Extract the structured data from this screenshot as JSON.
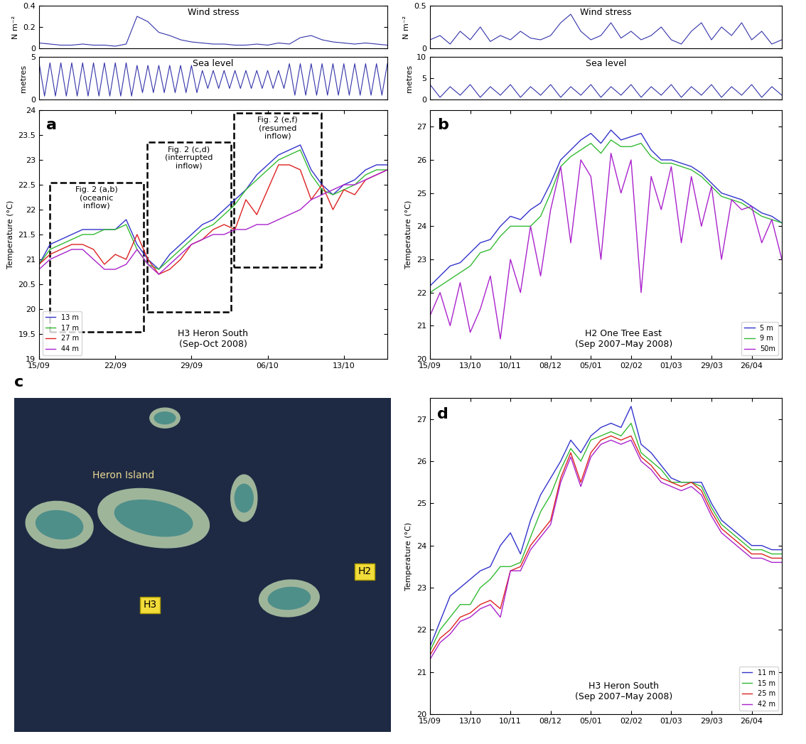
{
  "chart_data": [
    {
      "type": "line",
      "panel": null,
      "title": "Wind stress",
      "y_label": "N m⁻²",
      "x": [
        0,
        1,
        2,
        3,
        4,
        5,
        6,
        7,
        8,
        9,
        10,
        11,
        12,
        13,
        14,
        15,
        16,
        17,
        18,
        19,
        20,
        21,
        22,
        23,
        24,
        25,
        26,
        27,
        28,
        29,
        30,
        31,
        32
      ],
      "series": [
        {
          "name": "Wind stress",
          "color": "#3333aa",
          "values": [
            0.05,
            0.04,
            0.03,
            0.03,
            0.04,
            0.03,
            0.03,
            0.02,
            0.04,
            0.3,
            0.25,
            0.15,
            0.12,
            0.08,
            0.06,
            0.05,
            0.04,
            0.04,
            0.03,
            0.03,
            0.04,
            0.03,
            0.05,
            0.04,
            0.1,
            0.12,
            0.08,
            0.06,
            0.05,
            0.04,
            0.05,
            0.04,
            0.03
          ]
        }
      ],
      "xlim": [
        0,
        32
      ],
      "ylim": [
        0,
        0.4
      ],
      "xticks": [],
      "yticks": [
        0,
        0.2,
        0.4
      ],
      "tick_labels": "y"
    },
    {
      "type": "line",
      "panel": null,
      "title": "Sea level",
      "y_label": "metres",
      "x": [
        0,
        0.5,
        1,
        1.5,
        2,
        2.5,
        3,
        3.5,
        4,
        4.5,
        5,
        5.5,
        6,
        6.5,
        7,
        7.5,
        8,
        8.5,
        9,
        9.5,
        10,
        10.5,
        11,
        11.5,
        12,
        12.5,
        13,
        13.5,
        14,
        14.5,
        15,
        15.5,
        16,
        16.5,
        17,
        17.5,
        18,
        18.5,
        19,
        19.5,
        20,
        20.5,
        21,
        21.5,
        22,
        22.5,
        23,
        23.5,
        24,
        24.5,
        25,
        25.5,
        26,
        26.5,
        27,
        27.5,
        28,
        28.5,
        29,
        29.5,
        30,
        30.5,
        31,
        31.5,
        32
      ],
      "series": [
        {
          "name": "Sea level",
          "color": "#3333aa",
          "values": [
            4.3,
            0.4,
            4.3,
            0.4,
            4.3,
            0.4,
            4.3,
            0.4,
            4.3,
            0.4,
            4.3,
            0.4,
            4.3,
            0.4,
            4.3,
            0.4,
            4.3,
            0.4,
            4.0,
            0.8,
            4.0,
            0.8,
            4.0,
            0.8,
            4.0,
            0.8,
            4.0,
            0.8,
            4.0,
            0.8,
            3.4,
            1.3,
            3.4,
            1.3,
            3.4,
            1.3,
            3.4,
            1.3,
            3.4,
            1.3,
            3.4,
            1.3,
            3.4,
            1.3,
            3.4,
            1.3,
            4.2,
            0.5,
            4.2,
            0.5,
            4.2,
            0.5,
            4.2,
            0.5,
            4.2,
            0.5,
            4.2,
            0.5,
            4.2,
            0.5,
            4.2,
            0.5,
            4.2,
            0.5,
            4.2
          ]
        }
      ],
      "xlim": [
        0,
        32
      ],
      "ylim": [
        0,
        5
      ],
      "xticks": [],
      "yticks": [
        0,
        5
      ],
      "tick_labels": "y"
    },
    {
      "type": "line",
      "panel": "a",
      "title": "H3 Heron South\n(Sep-Oct 2008)",
      "y_label": "Temperature (°C)",
      "x": [
        0,
        1,
        2,
        3,
        4,
        5,
        6,
        7,
        8,
        9,
        10,
        11,
        12,
        13,
        14,
        15,
        16,
        17,
        18,
        19,
        20,
        21,
        22,
        23,
        24,
        25,
        26,
        27,
        28,
        29,
        30,
        31,
        32
      ],
      "series": [
        {
          "name": "13 m",
          "color": "#3333cc",
          "values": [
            20.9,
            21.3,
            21.4,
            21.5,
            21.6,
            21.6,
            21.6,
            21.6,
            21.8,
            21.3,
            21.0,
            20.8,
            21.1,
            21.3,
            21.5,
            21.7,
            21.8,
            22.0,
            22.2,
            22.4,
            22.7,
            22.9,
            23.1,
            23.2,
            23.3,
            22.8,
            22.5,
            22.3,
            22.5,
            22.6,
            22.8,
            22.9,
            22.9
          ]
        },
        {
          "name": "17 m",
          "color": "#33bb33",
          "values": [
            20.9,
            21.2,
            21.3,
            21.4,
            21.5,
            21.5,
            21.6,
            21.6,
            21.7,
            21.2,
            20.9,
            20.8,
            21.0,
            21.2,
            21.4,
            21.6,
            21.7,
            21.9,
            22.1,
            22.4,
            22.6,
            22.8,
            23.0,
            23.1,
            23.2,
            22.7,
            22.4,
            22.3,
            22.4,
            22.5,
            22.7,
            22.8,
            22.8
          ]
        },
        {
          "name": "27 m",
          "color": "#dd2222",
          "values": [
            20.9,
            21.1,
            21.2,
            21.3,
            21.3,
            21.2,
            20.9,
            21.1,
            21.0,
            21.5,
            21.0,
            20.7,
            20.8,
            21.0,
            21.3,
            21.4,
            21.6,
            21.7,
            21.6,
            22.2,
            21.9,
            22.4,
            22.9,
            22.9,
            22.8,
            22.2,
            22.5,
            22.0,
            22.4,
            22.3,
            22.6,
            22.7,
            22.8
          ]
        },
        {
          "name": "44 m",
          "color": "#aa22cc",
          "values": [
            20.8,
            21.0,
            21.1,
            21.2,
            21.2,
            21.0,
            20.8,
            20.8,
            20.9,
            21.2,
            20.9,
            20.7,
            20.9,
            21.1,
            21.3,
            21.4,
            21.5,
            21.5,
            21.6,
            21.6,
            21.7,
            21.7,
            21.8,
            21.9,
            22.0,
            22.2,
            22.3,
            22.4,
            22.5,
            22.5,
            22.6,
            22.7,
            22.8
          ]
        }
      ],
      "annotations": [
        "Fig. 2 (a,b)\n(oceanic\ninflow)",
        "Fig. 2 (c,d)\n(interrupted\ninflow)",
        "Fig. 2 (e,f)\n(resumed\ninflow)"
      ],
      "xlim": [
        0,
        32
      ],
      "ylim": [
        19,
        24
      ],
      "xticks": [
        {
          "value": 0,
          "label": "15/09"
        },
        {
          "value": 7,
          "label": "22/09"
        },
        {
          "value": 14,
          "label": "29/09"
        },
        {
          "value": 21,
          "label": "06/10"
        },
        {
          "value": 28,
          "label": "13/10"
        }
      ],
      "yticks": [
        19,
        19.5,
        20,
        20.5,
        21,
        21.5,
        22,
        22.5,
        23,
        23.5,
        24
      ],
      "legend": "lower left"
    },
    {
      "type": "line",
      "panel": null,
      "title": "Wind stress",
      "y_label": "N m⁻²",
      "x": [
        0,
        7,
        14,
        21,
        28,
        35,
        42,
        49,
        56,
        63,
        70,
        77,
        84,
        91,
        98,
        105,
        112,
        119,
        126,
        133,
        140,
        147,
        154,
        161,
        168,
        175,
        182,
        189,
        196,
        203,
        210,
        217,
        224,
        231,
        238,
        245
      ],
      "series": [
        {
          "name": "Wind stress",
          "color": "#3333aa",
          "values": [
            0.1,
            0.15,
            0.05,
            0.2,
            0.1,
            0.25,
            0.08,
            0.15,
            0.1,
            0.2,
            0.12,
            0.1,
            0.15,
            0.3,
            0.4,
            0.2,
            0.1,
            0.15,
            0.3,
            0.12,
            0.2,
            0.1,
            0.15,
            0.25,
            0.1,
            0.05,
            0.2,
            0.3,
            0.1,
            0.25,
            0.15,
            0.3,
            0.1,
            0.2,
            0.05,
            0.1
          ]
        }
      ],
      "xlim": [
        0,
        245
      ],
      "ylim": [
        0,
        0.5
      ],
      "xticks": [],
      "yticks": [
        0,
        0.5
      ],
      "tick_labels": "y"
    },
    {
      "type": "line",
      "panel": null,
      "title": "Sea level",
      "y_label": "metres",
      "x": [
        0,
        7,
        14,
        21,
        28,
        35,
        42,
        49,
        56,
        63,
        70,
        77,
        84,
        91,
        98,
        105,
        112,
        119,
        126,
        133,
        140,
        147,
        154,
        161,
        168,
        175,
        182,
        189,
        196,
        203,
        210,
        217,
        224,
        231,
        238,
        245
      ],
      "series": [
        {
          "name": "Sea level",
          "color": "#3333aa",
          "values": [
            3.5,
            0.5,
            3.0,
            1.0,
            3.5,
            0.5,
            3.0,
            1.0,
            3.5,
            0.5,
            3.0,
            1.0,
            3.5,
            0.5,
            3.0,
            1.0,
            3.5,
            0.5,
            3.0,
            1.0,
            3.5,
            0.5,
            3.0,
            1.0,
            3.5,
            0.5,
            3.0,
            1.0,
            3.5,
            0.5,
            3.0,
            1.0,
            3.5,
            0.5,
            3.0,
            1.0
          ]
        }
      ],
      "xlim": [
        0,
        245
      ],
      "ylim": [
        0,
        10
      ],
      "xticks": [],
      "yticks": [
        0,
        5,
        10
      ],
      "tick_labels": "y"
    },
    {
      "type": "line",
      "panel": "b",
      "title": "H2 One Tree East\n(Sep 2007–May 2008)",
      "y_label": "Temperature (°C)",
      "x": [
        0,
        7,
        14,
        21,
        28,
        35,
        42,
        49,
        56,
        63,
        70,
        77,
        84,
        91,
        98,
        105,
        112,
        119,
        126,
        133,
        140,
        147,
        154,
        161,
        168,
        175,
        182,
        189,
        196,
        203,
        210,
        217,
        224,
        231,
        238,
        245
      ],
      "series": [
        {
          "name": "5 m",
          "color": "#3333cc",
          "values": [
            22.2,
            22.5,
            22.8,
            22.9,
            23.2,
            23.5,
            23.6,
            24.0,
            24.3,
            24.2,
            24.5,
            24.7,
            25.3,
            26.0,
            26.3,
            26.6,
            26.8,
            26.5,
            26.9,
            26.6,
            26.7,
            26.8,
            26.3,
            26.0,
            26.0,
            25.9,
            25.8,
            25.6,
            25.3,
            25.0,
            24.9,
            24.8,
            24.6,
            24.4,
            24.3,
            24.1
          ]
        },
        {
          "name": "9 m",
          "color": "#33bb33",
          "values": [
            22.0,
            22.2,
            22.4,
            22.6,
            22.8,
            23.2,
            23.3,
            23.7,
            24.0,
            24.0,
            24.0,
            24.3,
            25.0,
            25.8,
            26.1,
            26.3,
            26.5,
            26.2,
            26.6,
            26.4,
            26.4,
            26.5,
            26.1,
            25.9,
            25.9,
            25.8,
            25.7,
            25.5,
            25.2,
            24.9,
            24.8,
            24.7,
            24.5,
            24.3,
            24.2,
            24.1
          ]
        },
        {
          "name": "50m",
          "color": "#aa22cc",
          "values": [
            21.3,
            22.0,
            21.0,
            22.3,
            20.8,
            21.5,
            22.5,
            20.6,
            23.0,
            22.0,
            24.0,
            22.5,
            24.5,
            25.8,
            23.5,
            26.0,
            25.5,
            23.0,
            26.2,
            25.0,
            26.0,
            22.0,
            25.5,
            24.5,
            25.8,
            23.5,
            25.5,
            24.0,
            25.2,
            23.0,
            24.8,
            24.5,
            24.6,
            23.5,
            24.2,
            23.0
          ]
        }
      ],
      "xlim": [
        0,
        245
      ],
      "ylim": [
        20,
        27.5
      ],
      "xticks": [
        {
          "value": 0,
          "label": "15/09"
        },
        {
          "value": 28,
          "label": "13/10"
        },
        {
          "value": 56,
          "label": "10/11"
        },
        {
          "value": 84,
          "label": "08/12"
        },
        {
          "value": 112,
          "label": "05/01"
        },
        {
          "value": 140,
          "label": "02/02"
        },
        {
          "value": 168,
          "label": "01/03"
        },
        {
          "value": 196,
          "label": "29/03"
        },
        {
          "value": 224,
          "label": "26/04"
        }
      ],
      "yticks": [
        20,
        21,
        22,
        23,
        24,
        25,
        26,
        27
      ],
      "legend": "lower right"
    },
    {
      "type": "line",
      "panel": "d",
      "title": "H3 Heron South\n(Sep 2007–May 2008)",
      "y_label": "Temperature (°C)",
      "x": [
        0,
        7,
        14,
        21,
        28,
        35,
        42,
        49,
        56,
        63,
        70,
        77,
        84,
        91,
        98,
        105,
        112,
        119,
        126,
        133,
        140,
        147,
        154,
        161,
        168,
        175,
        182,
        189,
        196,
        203,
        210,
        217,
        224,
        231,
        238,
        245
      ],
      "series": [
        {
          "name": "11 m",
          "color": "#3333cc",
          "values": [
            21.6,
            22.2,
            22.8,
            23.0,
            23.2,
            23.4,
            23.5,
            24.0,
            24.3,
            23.8,
            24.6,
            25.2,
            25.6,
            26.0,
            26.5,
            26.2,
            26.6,
            26.8,
            26.9,
            26.8,
            27.3,
            26.4,
            26.2,
            25.9,
            25.6,
            25.5,
            25.5,
            25.5,
            25.0,
            24.6,
            24.4,
            24.2,
            24.0,
            24.0,
            23.9,
            23.9
          ]
        },
        {
          "name": "15 m",
          "color": "#33bb33",
          "values": [
            21.5,
            22.0,
            22.3,
            22.6,
            22.6,
            23.0,
            23.2,
            23.5,
            23.5,
            23.6,
            24.2,
            24.8,
            25.2,
            25.8,
            26.3,
            26.0,
            26.5,
            26.6,
            26.7,
            26.6,
            26.9,
            26.2,
            26.0,
            25.8,
            25.5,
            25.5,
            25.5,
            25.4,
            24.9,
            24.5,
            24.3,
            24.1,
            23.9,
            23.9,
            23.8,
            23.8
          ]
        },
        {
          "name": "25 m",
          "color": "#dd2222",
          "values": [
            21.4,
            21.8,
            22.0,
            22.3,
            22.4,
            22.6,
            22.7,
            22.5,
            23.4,
            23.5,
            24.0,
            24.3,
            24.6,
            25.6,
            26.2,
            25.5,
            26.2,
            26.5,
            26.6,
            26.5,
            26.6,
            26.1,
            25.9,
            25.6,
            25.5,
            25.4,
            25.5,
            25.3,
            24.8,
            24.4,
            24.2,
            24.0,
            23.8,
            23.8,
            23.7,
            23.7
          ]
        },
        {
          "name": "42 m",
          "color": "#aa22cc",
          "values": [
            21.3,
            21.7,
            21.9,
            22.2,
            22.3,
            22.5,
            22.6,
            22.3,
            23.4,
            23.4,
            23.9,
            24.2,
            24.5,
            25.5,
            26.1,
            25.4,
            26.1,
            26.4,
            26.5,
            26.4,
            26.5,
            26.0,
            25.8,
            25.5,
            25.4,
            25.3,
            25.4,
            25.2,
            24.7,
            24.3,
            24.1,
            23.9,
            23.7,
            23.7,
            23.6,
            23.6
          ]
        }
      ],
      "xlim": [
        0,
        245
      ],
      "ylim": [
        20,
        27.5
      ],
      "xticks": [
        {
          "value": 0,
          "label": "15/09"
        },
        {
          "value": 28,
          "label": "13/10"
        },
        {
          "value": 56,
          "label": "10/11"
        },
        {
          "value": 84,
          "label": "08/12"
        },
        {
          "value": 112,
          "label": "05/01"
        },
        {
          "value": 140,
          "label": "02/02"
        },
        {
          "value": 168,
          "label": "01/03"
        },
        {
          "value": 196,
          "label": "29/03"
        },
        {
          "value": 224,
          "label": "26/04"
        }
      ],
      "yticks": [
        20,
        21,
        22,
        23,
        24,
        25,
        26,
        27
      ],
      "legend": "lower right"
    }
  ],
  "image": {
    "panel": "c",
    "island": "Heron Island",
    "sites": [
      "H3",
      "H2"
    ]
  }
}
